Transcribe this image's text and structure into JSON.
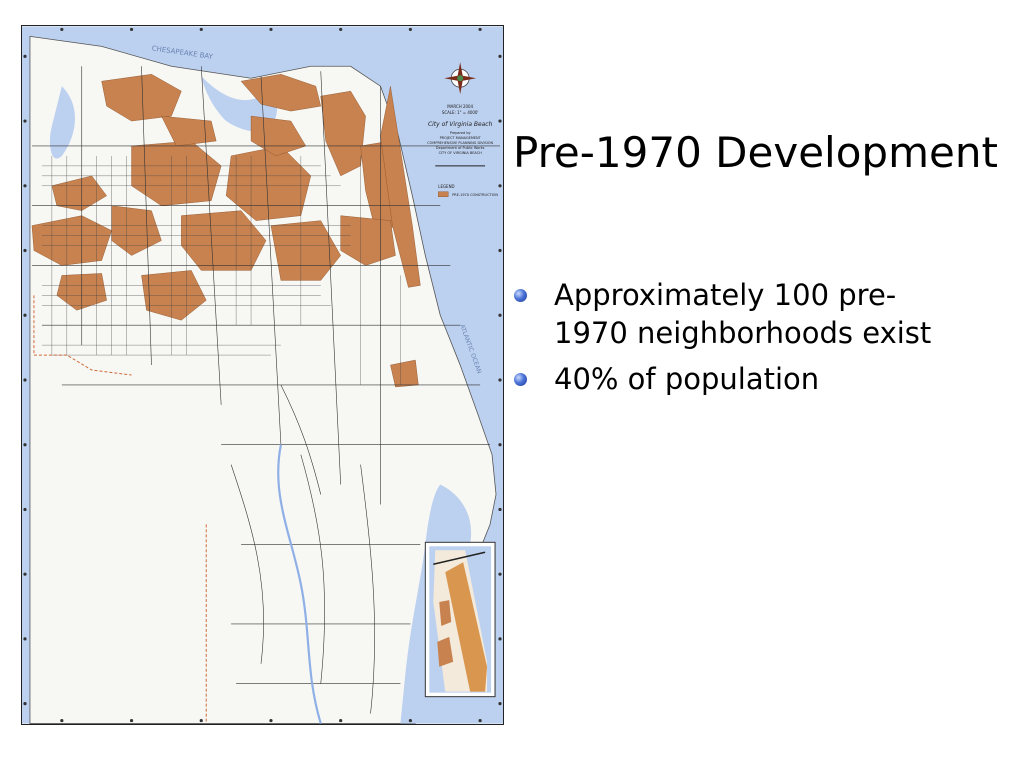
{
  "slide": {
    "title": "Pre-1970 Development",
    "bullets": [
      {
        "text": "Approximately 100 pre-1970 neighborhoods exist"
      },
      {
        "text": "40% of population"
      }
    ]
  },
  "map": {
    "title_block": {
      "line1": "MARCH 2004",
      "line2": "SCALE: 1\" = 4000'",
      "city": "City of Virginia Beach",
      "prepared_by": "Prepared by",
      "dept1": "PROJECT MANAGEMENT",
      "dept2": "COMPREHENSIVE PLANNING DIVISION",
      "dept3": "Department of Public Works",
      "dept4": "CITY OF VIRGINIA BEACH",
      "note": "Pre-1970 Development"
    },
    "legend": {
      "title": "LEGEND",
      "item": "PRE-1970 CONSTRUCTION"
    },
    "labels": {
      "bay": "CHESAPEAKE BAY",
      "ocean": "ATLANTIC OCEAN"
    },
    "colors": {
      "water": "#bcd0ef",
      "land": "#f7f7f4",
      "development": "#c8824f",
      "roads": "#222222",
      "boundary": "#d06a3a"
    },
    "icons": {
      "compass": "compass-rose-icon"
    }
  }
}
